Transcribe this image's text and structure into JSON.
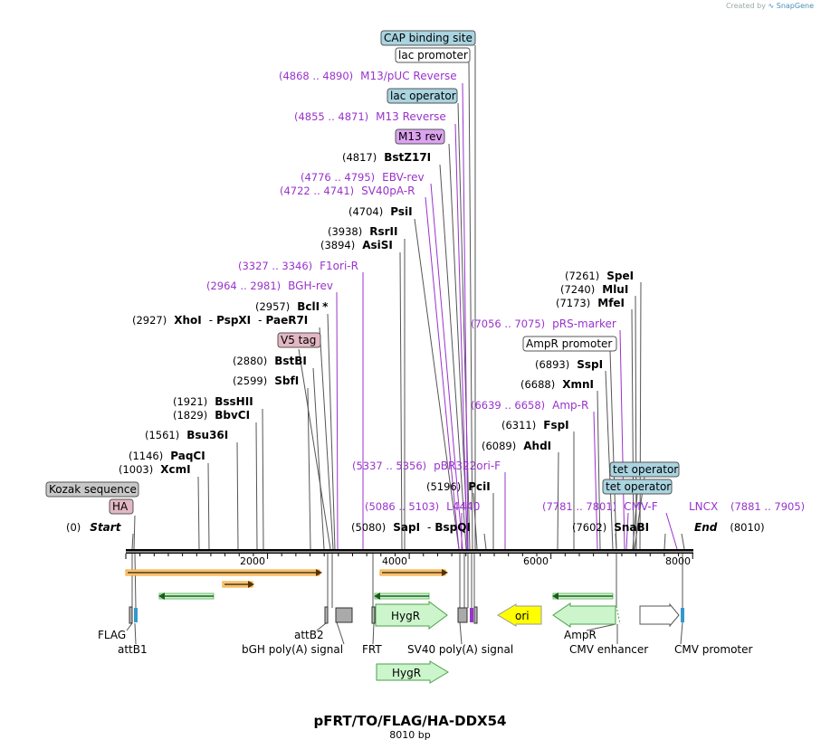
{
  "credit": {
    "prefix": "Created by",
    "brand": "SnapGene"
  },
  "title": "pFRT/TO/FLAG/HA-DDX54",
  "subtitle": "8010 bp",
  "ruler": {
    "total_bp": 8010,
    "ticks": [
      "2000",
      "4000",
      "6000",
      "8000"
    ]
  },
  "colors": {
    "primer": "#9933cc",
    "feature_blue": "#a9d4e0",
    "feature_pink": "#e3b7c4",
    "feature_grey": "#c8c8c8",
    "m13": "#dca3f0",
    "orf_fill": "#ccf5cc",
    "orf_stroke": "#4d9e4d",
    "ori": "#ffff00",
    "orange": "#f5a623"
  },
  "sites": [
    {
      "pos": "(0)",
      "name": "Start",
      "italic": true
    },
    {
      "pos": "(1003)",
      "name": "XcmI"
    },
    {
      "pos": "(1146)",
      "name": "PaqCI"
    },
    {
      "pos": "(1561)",
      "name": "Bsu36I"
    },
    {
      "pos": "(1829)",
      "name": "BbvCI"
    },
    {
      "pos": "(1921)",
      "name": "BssHII"
    },
    {
      "pos": "(2599)",
      "name": "SbfI"
    },
    {
      "pos": "(2880)",
      "name": "BstBI"
    },
    {
      "pos": "(2927)",
      "name": "XhoI",
      "extra1": "PspXI",
      "extra2": "PaeR7I"
    },
    {
      "pos": "(2957)",
      "name": "BclI",
      "star": "*"
    },
    {
      "pos": "(3894)",
      "name": "AsiSI"
    },
    {
      "pos": "(3938)",
      "name": "RsrII"
    },
    {
      "pos": "(4704)",
      "name": "PsiI"
    },
    {
      "pos": "(4817)",
      "name": "BstZ17I"
    },
    {
      "pos": "(5080)",
      "name": "SapI",
      "extra1": "BspQI"
    },
    {
      "pos": "(5196)",
      "name": "PciI"
    },
    {
      "pos": "(6089)",
      "name": "AhdI"
    },
    {
      "pos": "(6311)",
      "name": "FspI"
    },
    {
      "pos": "(6688)",
      "name": "XmnI"
    },
    {
      "pos": "(6893)",
      "name": "SspI"
    },
    {
      "pos": "(7173)",
      "name": "MfeI"
    },
    {
      "pos": "(7240)",
      "name": "MluI"
    },
    {
      "pos": "(7261)",
      "name": "SpeI"
    },
    {
      "pos": "(7602)",
      "name": "SnaBI"
    },
    {
      "pos": "(8010)",
      "name": "End",
      "italic": true
    }
  ],
  "primers": [
    {
      "pos": "(4868 .. 4890)",
      "name": "M13/pUC Reverse"
    },
    {
      "pos": "(4855 .. 4871)",
      "name": "M13 Reverse"
    },
    {
      "pos": "(4776 .. 4795)",
      "name": "EBV-rev"
    },
    {
      "pos": "(4722 .. 4741)",
      "name": "SV40pA-R"
    },
    {
      "pos": "(3327 .. 3346)",
      "name": "F1ori-R"
    },
    {
      "pos": "(2964 .. 2981)",
      "name": "BGH-rev"
    },
    {
      "pos": "(7056 .. 7075)",
      "name": "pRS-marker"
    },
    {
      "pos": "(6639 .. 6658)",
      "name": "Amp-R"
    },
    {
      "pos": "(5337 .. 5356)",
      "name": "pBR322ori-F"
    },
    {
      "pos": "(5086 .. 5103)",
      "name": "L4440"
    },
    {
      "pos": "(7781 .. 7801)",
      "name": "CMV-F"
    },
    {
      "pos": "(7881 .. 7905)",
      "name": "LNCX"
    }
  ],
  "boxed": [
    {
      "name": "CAP binding site",
      "color": "#a9d4e0"
    },
    {
      "name": "lac promoter",
      "color": "#ffffff"
    },
    {
      "name": "lac operator",
      "color": "#a9d4e0"
    },
    {
      "name": "M13 rev",
      "color": "#dca3f0"
    },
    {
      "name": "V5 tag",
      "color": "#e3b7c4"
    },
    {
      "name": "AmpR promoter",
      "color": "#ffffff"
    },
    {
      "name": "tet operator",
      "color": "#a9d4e0"
    },
    {
      "name": "tet operator",
      "color": "#a9d4e0"
    },
    {
      "name": "Kozak sequence",
      "color": "#c8c8c8"
    },
    {
      "name": "HA",
      "color": "#e3b7c4"
    }
  ],
  "features": {
    "HygR_a": "HygR",
    "HygR_b": "HygR",
    "ori": "ori"
  },
  "bottom_labels": [
    "FLAG",
    "attB1",
    "attB2",
    "bGH poly(A) signal",
    "FRT",
    "SV40 poly(A) signal",
    "AmpR",
    "CMV enhancer",
    "CMV promoter"
  ]
}
